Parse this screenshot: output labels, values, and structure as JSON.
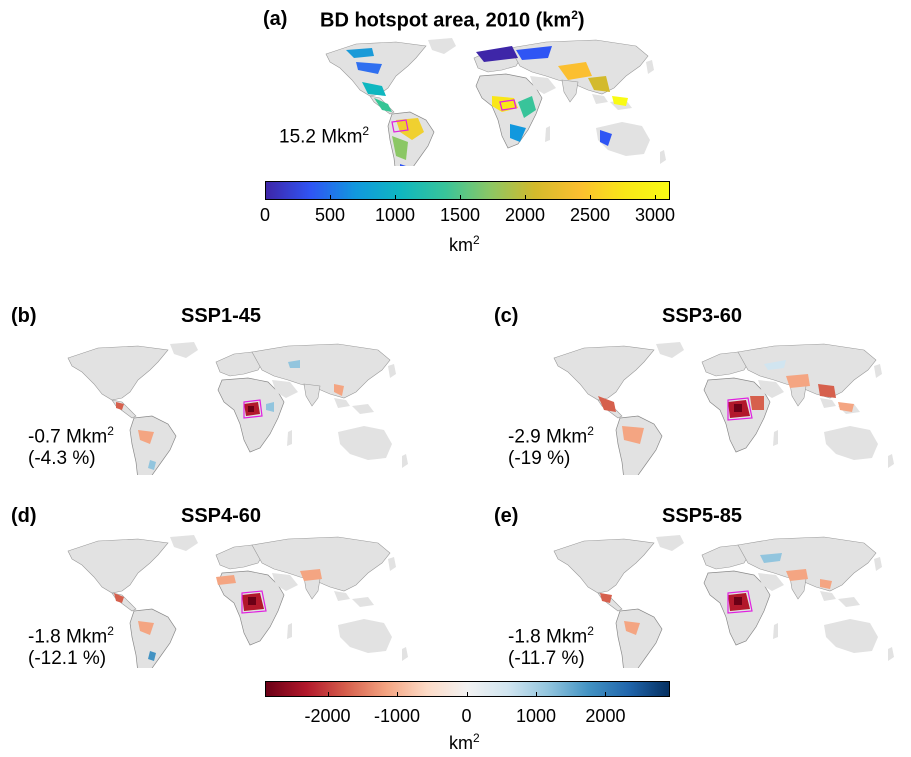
{
  "panel_a": {
    "label": "(a)",
    "title": "BD hotspot area, 2010 (km",
    "title_sup": "2",
    "title_close": ")",
    "total_value": "15.2 Mkm",
    "total_sup": "2"
  },
  "colorbar_a": {
    "colors": [
      "#3e26a8",
      "#2f55f4",
      "#1198de",
      "#0fb7c0",
      "#38c49a",
      "#8bc765",
      "#d3ba2c",
      "#fbbf30",
      "#f9e618",
      "#f9fb14"
    ],
    "ticks": [
      "0",
      "500",
      "1000",
      "1500",
      "2000",
      "2500",
      "3000"
    ],
    "tick_values": [
      0,
      500,
      1000,
      1500,
      2000,
      2500,
      3000
    ],
    "range": [
      0,
      3100
    ],
    "unit": "km",
    "unit_sup": "2"
  },
  "panels": [
    {
      "label": "(b)",
      "title": "SSP1-45",
      "change": "-0.7 Mkm",
      "change_sup": "2",
      "percent": "(-4.3 %)"
    },
    {
      "label": "(c)",
      "title": "SSP3-60",
      "change": "-2.9 Mkm",
      "change_sup": "2",
      "percent": "(-19 %)"
    },
    {
      "label": "(d)",
      "title": "SSP4-60",
      "change": "-1.8 Mkm",
      "change_sup": "2",
      "percent": "(-12.1 %)"
    },
    {
      "label": "(e)",
      "title": "SSP5-85",
      "change": "-1.8 Mkm",
      "change_sup": "2",
      "percent": "(-11.7 %)"
    }
  ],
  "colorbar_b": {
    "colors": [
      "#6b0016",
      "#b2182b",
      "#d6604d",
      "#f4a582",
      "#fddbc7",
      "#f2f2f2",
      "#d1e5f0",
      "#92c5de",
      "#4393c3",
      "#2166ac",
      "#053061"
    ],
    "ticks": [
      "-2000",
      "-1000",
      "0",
      "1000",
      "2000"
    ],
    "tick_values": [
      -2000,
      -1000,
      0,
      1000,
      2000
    ],
    "range": [
      -2900,
      2900
    ],
    "unit": "km",
    "unit_sup": "2"
  },
  "chart_data": {
    "type": "heatmap",
    "title": "BD hotspot area, 2010 (km2)",
    "panels": [
      {
        "label": "(a)",
        "title": "BD hotspot area, 2010 (km2)",
        "total_area_Mkm2": 15.2,
        "colorbar_range": [
          0,
          3100
        ]
      },
      {
        "label": "(b)",
        "title": "SSP1-45",
        "change_Mkm2": -0.7,
        "change_percent": -4.3
      },
      {
        "label": "(c)",
        "title": "SSP3-60",
        "change_Mkm2": -2.9,
        "change_percent": -19
      },
      {
        "label": "(d)",
        "title": "SSP4-60",
        "change_Mkm2": -1.8,
        "change_percent": -12.1
      },
      {
        "label": "(e)",
        "title": "SSP5-85",
        "change_Mkm2": -1.8,
        "change_percent": -11.7
      }
    ],
    "difference_colorbar_range": [
      -2900,
      2900
    ]
  }
}
